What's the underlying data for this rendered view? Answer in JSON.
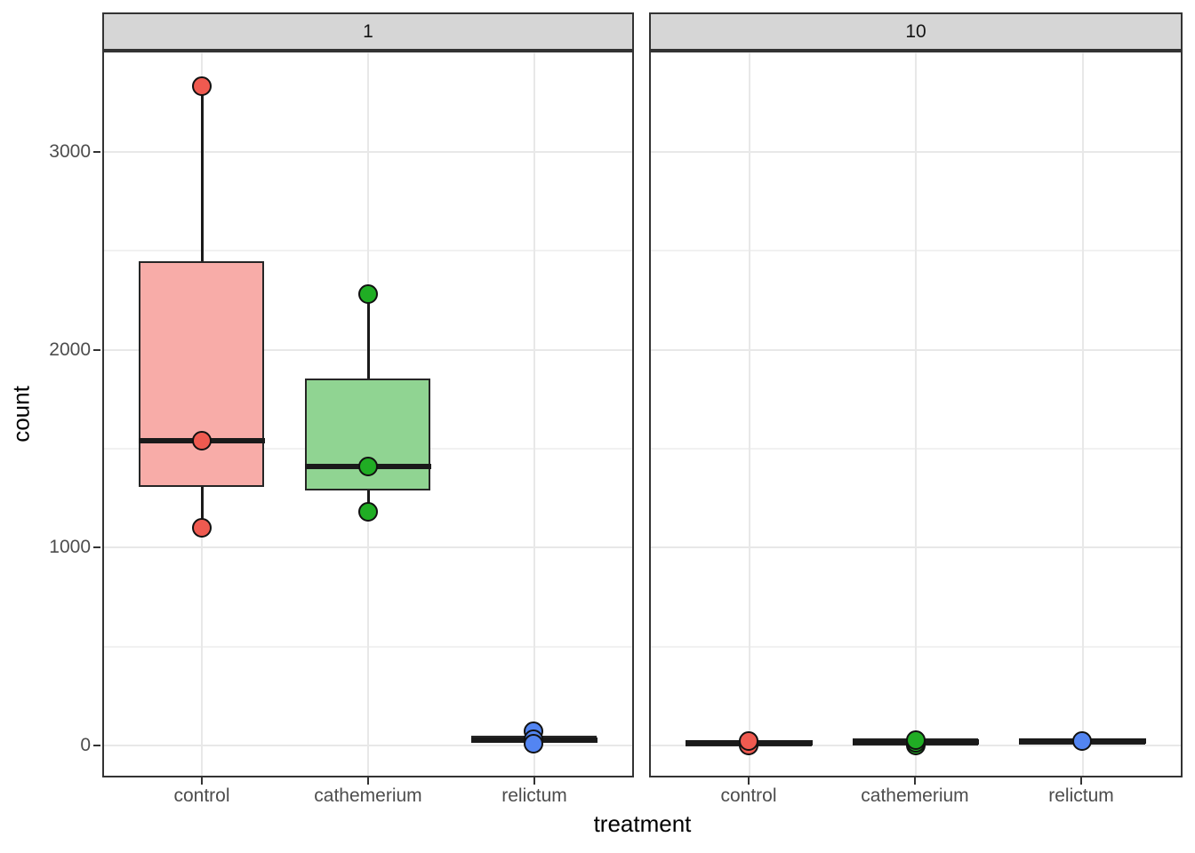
{
  "chart_data": {
    "type": "boxplot",
    "title": "",
    "xlabel": "treatment",
    "ylabel": "count",
    "facet_labels": [
      "1",
      "10"
    ],
    "categories": [
      "control",
      "cathemerium",
      "relictum"
    ],
    "y_ticks": [
      0,
      1000,
      2000,
      3000
    ],
    "y_minor_ticks": [
      500,
      1500,
      2500,
      3500
    ],
    "ylim": [
      -160,
      3510
    ],
    "grid": "major+minor horizontal, major vertical at categories",
    "legend": "none",
    "colors": {
      "control": "#EF5A50",
      "cathemerium": "#20AD24",
      "relictum": "#5385F2",
      "control_fill": "#F8ACA8",
      "cathemerium_fill": "#90D492",
      "relictum_fill": "#A8C6F5",
      "stroke": "#1A1A1A",
      "strip_fill": "#D6D6D6",
      "gridline_major": "#E8E8E8",
      "gridline_minor": "#F1F1F1"
    },
    "facets": [
      {
        "label": "1",
        "groups": [
          {
            "category": "control",
            "points": [
              3330,
              1540,
              1100
            ],
            "q1": 1315,
            "median": 1540,
            "q3": 2435,
            "whisker_low": 1100,
            "whisker_high": 3330
          },
          {
            "category": "cathemerium",
            "points": [
              2280,
              1410,
              1180
            ],
            "q1": 1295,
            "median": 1410,
            "q3": 1845,
            "whisker_low": 1180,
            "whisker_high": 2280
          },
          {
            "category": "relictum",
            "points": [
              70,
              30,
              10
            ],
            "q1": 25,
            "median": 30,
            "q3": 40,
            "whisker_low": 10,
            "whisker_high": 70
          }
        ]
      },
      {
        "label": "10",
        "groups": [
          {
            "category": "control",
            "points": [
              0,
              20
            ],
            "q1": 5,
            "median": 13,
            "q3": 18,
            "whisker_low": 5,
            "whisker_high": 18
          },
          {
            "category": "cathemerium",
            "points": [
              0,
              13,
              27
            ],
            "q1": 10,
            "median": 20,
            "q3": 27,
            "whisker_low": 10,
            "whisker_high": 27
          },
          {
            "category": "relictum",
            "points": [
              22
            ],
            "q1": 14,
            "median": 22,
            "q3": 28,
            "whisker_low": 14,
            "whisker_high": 28
          }
        ]
      }
    ]
  }
}
